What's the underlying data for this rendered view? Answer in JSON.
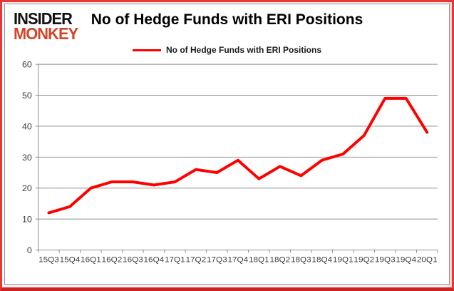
{
  "logo": {
    "line1": "INSIDER",
    "line2": "MONKEY",
    "line1_color": "#121212",
    "line2_color": "#d2452a"
  },
  "header": {
    "title": "No of Hedge Funds with ERI Positions"
  },
  "chart_data": {
    "type": "line",
    "title": "No of Hedge Funds with ERI Positions",
    "categories": [
      "15Q3",
      "15Q4",
      "16Q1",
      "16Q2",
      "16Q3",
      "16Q4",
      "17Q1",
      "17Q2",
      "17Q3",
      "17Q4",
      "18Q1",
      "18Q2",
      "18Q3",
      "18Q4",
      "19Q1",
      "19Q2",
      "19Q3",
      "19Q4",
      "20Q1"
    ],
    "series": [
      {
        "name": "No of Hedge Funds with ERI Positions",
        "color": "#ff0000",
        "values": [
          12,
          14,
          20,
          22,
          22,
          21,
          22,
          26,
          25,
          29,
          23,
          27,
          24,
          29,
          31,
          37,
          49,
          49,
          38
        ]
      }
    ],
    "xlabel": "",
    "ylabel": "",
    "ylim": [
      0,
      60
    ],
    "y_ticks": [
      0,
      10,
      20,
      30,
      40,
      50,
      60
    ],
    "grid": true,
    "legend_position": "top",
    "grid_color": "#8f8f8f",
    "axis_label_color": "#3d3d3d",
    "line_width": 4
  }
}
